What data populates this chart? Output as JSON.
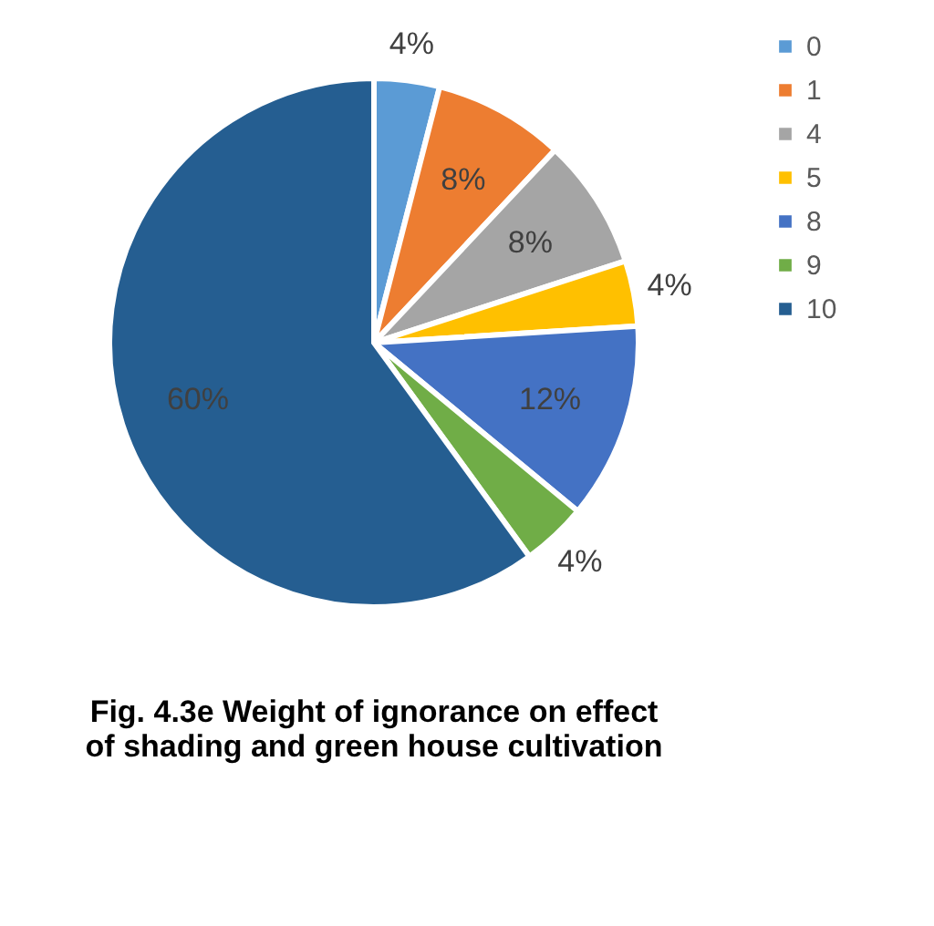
{
  "chart_data": {
    "type": "pie",
    "title": "Fig. 4.3e Weight of ignorance on effect of shading and green house cultivation",
    "categories": [
      "0",
      "1",
      "4",
      "5",
      "8",
      "9",
      "10"
    ],
    "values": [
      4,
      8,
      8,
      4,
      12,
      4,
      60
    ],
    "colors": [
      "#5b9bd5",
      "#ed7d31",
      "#a5a5a5",
      "#ffc000",
      "#4472c4",
      "#70ad47",
      "#255e91"
    ],
    "value_labels": [
      "4%",
      "8%",
      "8%",
      "4%",
      "12%",
      "4%",
      "60%"
    ],
    "legend": "right"
  }
}
